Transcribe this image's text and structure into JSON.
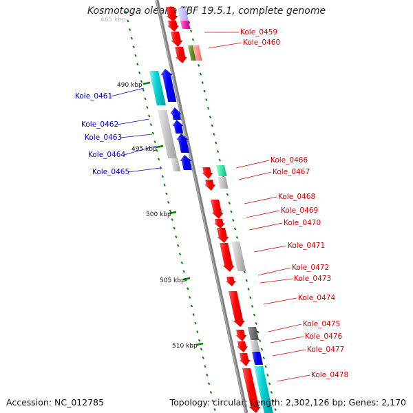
{
  "title": "Kosmotoga olearia TBF 19.5.1, complete genome",
  "footer": {
    "accession": "Accession: NC_012785",
    "topology": "Topology: circular; Length: 2,302,126 bp; Genes: 2,170"
  },
  "colors": {
    "backbone": "#808080",
    "tick": "#008000",
    "forward_label": "#d40000",
    "reverse_label": "#0000cc"
  },
  "scale_labels": [
    "485 kbp",
    "490 kbp",
    "495 kbp",
    "500 kbp",
    "505 kbp",
    "510 kbp"
  ],
  "gene_labels": {
    "reverse": [
      "Kole_0461",
      "Kole_0462",
      "Kole_0463",
      "Kole_0464",
      "Kole_0465"
    ],
    "forward": [
      "Kole_0459",
      "Kole_0460",
      "Kole_0466",
      "Kole_0467",
      "Kole_0468",
      "Kole_0469",
      "Kole_0470",
      "Kole_0471",
      "Kole_0472",
      "Kole_0473",
      "Kole_0474",
      "Kole_0475",
      "Kole_0476",
      "Kole_0477",
      "Kole_0478"
    ]
  }
}
